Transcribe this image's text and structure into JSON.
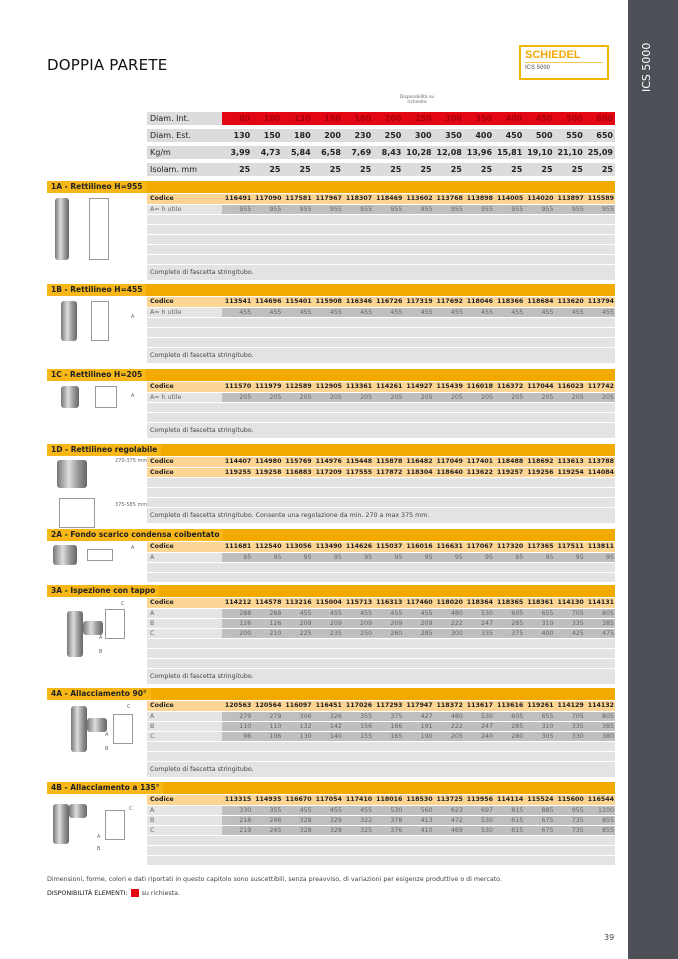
{
  "page_title": "DOPPIA PARETE",
  "sidebar_label": "ICS 5000",
  "logo": {
    "brand": "SCHIEDEL",
    "product": "ICS 5000"
  },
  "availability_header": "Disponibilità su richiesta",
  "colors": {
    "accent": "#f2a900",
    "on_request": "#e30613",
    "sidebar": "#4d5157"
  },
  "spec_table": [
    {
      "label": "Diam. Int.",
      "highlight": true,
      "values": [
        "80",
        "100",
        "130",
        "150",
        "180",
        "200",
        "250",
        "300",
        "350",
        "400",
        "450",
        "500",
        "600"
      ]
    },
    {
      "label": "Diam. Est.",
      "values": [
        "130",
        "150",
        "180",
        "200",
        "230",
        "250",
        "300",
        "350",
        "400",
        "450",
        "500",
        "550",
        "650"
      ]
    },
    {
      "label": "Kg/m",
      "values": [
        "3,99",
        "4,73",
        "5,84",
        "6,58",
        "7,69",
        "8,43",
        "10,28",
        "12,08",
        "13,96",
        "15,81",
        "19,10",
        "21,10",
        "25,09"
      ]
    },
    {
      "label": "Isolam. mm",
      "values": [
        "25",
        "25",
        "25",
        "25",
        "25",
        "25",
        "25",
        "25",
        "25",
        "25",
        "25",
        "25",
        "25"
      ]
    }
  ],
  "sections": [
    {
      "title": "1A - Rettilineo H=955",
      "rows": [
        {
          "type": "code",
          "label": "Codice",
          "values": [
            "116491",
            "117090",
            "117581",
            "117967",
            "118307",
            "118469",
            "113602",
            "113768",
            "113898",
            "114005",
            "114020",
            "113897",
            "115589"
          ]
        },
        {
          "type": "dat",
          "label": "A= h utile",
          "values": [
            "955",
            "955",
            "955",
            "955",
            "955",
            "955",
            "955",
            "955",
            "955",
            "955",
            "955",
            "955",
            "955"
          ]
        }
      ],
      "note": "Completo di fascetta stringitubo.",
      "figure_labels": []
    },
    {
      "title": "1B - Rettilineo H=455",
      "rows": [
        {
          "type": "code",
          "label": "Codice",
          "values": [
            "113541",
            "114696",
            "115401",
            "115908",
            "116346",
            "116726",
            "117319",
            "117692",
            "118046",
            "118366",
            "118684",
            "113620",
            "113794"
          ]
        },
        {
          "type": "dat",
          "label": "A= h utile",
          "values": [
            "455",
            "455",
            "455",
            "455",
            "455",
            "455",
            "455",
            "455",
            "455",
            "455",
            "455",
            "455",
            "455"
          ]
        }
      ],
      "note": "Completo di fascetta stringitubo.",
      "figure_labels": [
        "A"
      ]
    },
    {
      "title": "1C - Rettilineo H=205",
      "rows": [
        {
          "type": "code",
          "label": "Codice",
          "values": [
            "111570",
            "111979",
            "112589",
            "112905",
            "113361",
            "114261",
            "114927",
            "115439",
            "116018",
            "116372",
            "117044",
            "116023",
            "117742"
          ]
        },
        {
          "type": "dat",
          "label": "A= h utile",
          "values": [
            "205",
            "205",
            "205",
            "205",
            "205",
            "205",
            "205",
            "205",
            "205",
            "205",
            "205",
            "205",
            "205"
          ]
        }
      ],
      "note": "Completo di fascetta stringitubo.",
      "figure_labels": [
        "A"
      ]
    },
    {
      "title": "1D - Rettilineo regolabile",
      "rows": [
        {
          "type": "code",
          "label": "Codice",
          "values": [
            "114407",
            "114980",
            "115769",
            "114976",
            "115448",
            "115878",
            "116482",
            "117049",
            "117401",
            "118488",
            "118692",
            "113613",
            "113788"
          ]
        },
        {
          "type": "code",
          "label": "Codice",
          "values": [
            "119255",
            "119258",
            "116883",
            "117209",
            "117555",
            "117872",
            "118304",
            "118640",
            "113622",
            "119257",
            "119256",
            "119254",
            "114084"
          ]
        }
      ],
      "note": "Completo di fascetta stringitubo. Consente una regolazione da min. 270 a max 375 mm.",
      "figure_labels": [
        "270-375 mm",
        "375-585 mm"
      ]
    },
    {
      "title": "2A - Fondo scarico condensa coibentato",
      "rows": [
        {
          "type": "code",
          "label": "Codice",
          "values": [
            "111681",
            "112540",
            "113056",
            "113490",
            "114626",
            "115037",
            "116016",
            "116631",
            "117067",
            "117320",
            "117365",
            "117511",
            "113811"
          ]
        },
        {
          "type": "dat",
          "label": "A",
          "values": [
            "95",
            "95",
            "95",
            "95",
            "95",
            "95",
            "95",
            "95",
            "95",
            "95",
            "95",
            "95",
            "95"
          ]
        }
      ],
      "note": "",
      "figure_labels": [
        "A"
      ]
    },
    {
      "title": "3A - Ispezione con tappo",
      "rows": [
        {
          "type": "code",
          "label": "Codice",
          "values": [
            "114212",
            "114578",
            "113216",
            "115004",
            "115713",
            "116313",
            "117460",
            "118020",
            "118364",
            "118365",
            "118361",
            "114130",
            "114131"
          ]
        },
        {
          "type": "dat",
          "label": "A",
          "values": [
            "288",
            "288",
            "455",
            "455",
            "455",
            "455",
            "455",
            "480",
            "530",
            "605",
            "655",
            "705",
            "805"
          ]
        },
        {
          "type": "dat",
          "label": "B",
          "values": [
            "126",
            "126",
            "209",
            "209",
            "209",
            "209",
            "209",
            "222",
            "247",
            "285",
            "310",
            "335",
            "385"
          ]
        },
        {
          "type": "dat",
          "label": "C",
          "values": [
            "200",
            "210",
            "225",
            "235",
            "250",
            "260",
            "285",
            "300",
            "335",
            "375",
            "400",
            "425",
            "475"
          ]
        }
      ],
      "note": "Completo di fascetta stringitubo.",
      "figure_labels": [
        "C",
        "A",
        "B"
      ]
    },
    {
      "title": "4A - Allacciamento 90°",
      "rows": [
        {
          "type": "code",
          "label": "Codice",
          "values": [
            "120563",
            "120564",
            "116097",
            "116451",
            "117026",
            "117293",
            "117947",
            "118372",
            "113617",
            "113616",
            "119261",
            "114129",
            "114132"
          ]
        },
        {
          "type": "dat",
          "label": "A",
          "values": [
            "279",
            "279",
            "306",
            "326",
            "355",
            "375",
            "427",
            "480",
            "530",
            "605",
            "655",
            "705",
            "805"
          ]
        },
        {
          "type": "dat",
          "label": "B",
          "values": [
            "110",
            "110",
            "132",
            "142",
            "156",
            "166",
            "191",
            "222",
            "247",
            "285",
            "310",
            "335",
            "385"
          ]
        },
        {
          "type": "dat",
          "label": "C",
          "values": [
            "96",
            "106",
            "130",
            "140",
            "155",
            "165",
            "190",
            "205",
            "240",
            "280",
            "305",
            "330",
            "380"
          ]
        }
      ],
      "note": "Completo di fascetta stringitubo.",
      "figure_labels": [
        "C",
        "A",
        "B"
      ]
    },
    {
      "title": "4B - Allacciamento a 135°",
      "rows": [
        {
          "type": "code",
          "label": "Codice",
          "values": [
            "113315",
            "114935",
            "116670",
            "117054",
            "117410",
            "118016",
            "118530",
            "113725",
            "113956",
            "114114",
            "115524",
            "115600",
            "116544"
          ]
        },
        {
          "type": "dat",
          "label": "A",
          "values": [
            "330",
            "355",
            "455",
            "455",
            "455",
            "530",
            "560",
            "623",
            "697",
            "815",
            "885",
            "955",
            "1100"
          ]
        },
        {
          "type": "dat",
          "label": "B",
          "values": [
            "218",
            "246",
            "328",
            "329",
            "322",
            "378",
            "413",
            "472",
            "530",
            "615",
            "675",
            "735",
            "855"
          ]
        },
        {
          "type": "dat",
          "label": "C",
          "values": [
            "219",
            "245",
            "328",
            "328",
            "325",
            "376",
            "410",
            "469",
            "530",
            "615",
            "675",
            "735",
            "855"
          ]
        }
      ],
      "note": "",
      "figure_labels": [
        "C",
        "A",
        "B"
      ]
    }
  ],
  "footer": {
    "disclaimer": "Dimensioni, forme, colori e dati riportati in questo capitolo sono suscettibili, senza preavviso, di variazioni per esigenze produttive o di mercato.",
    "legend_label": "DISPONIBILITÀ ELEMENTI:",
    "legend_text": "su richiesta."
  },
  "page_number": "39"
}
